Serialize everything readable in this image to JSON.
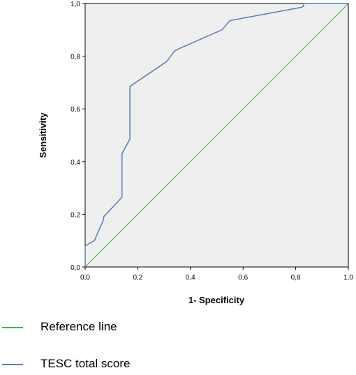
{
  "chart_data": {
    "type": "line",
    "title": "",
    "xlabel": "1- Specificity",
    "ylabel": "Sensitivity",
    "xlim": [
      0,
      1
    ],
    "ylim": [
      0,
      1
    ],
    "xticks": [
      "0,0",
      "0,2",
      "0,4",
      "0,6",
      "0,8",
      "1,0"
    ],
    "yticks": [
      "0,0",
      "0,2",
      "0,4",
      "0,6",
      "0,8",
      "1,0"
    ],
    "grid": false,
    "legend_position": "bottom-left",
    "plot_background": "#efefef",
    "series": [
      {
        "name": "Reference line",
        "color": "#3cb44b",
        "x": [
          0,
          1
        ],
        "y": [
          0,
          1
        ]
      },
      {
        "name": "TESC total score",
        "color": "#5b7bb5",
        "x": [
          0,
          0,
          0.035,
          0.035,
          0.07,
          0.07,
          0.14,
          0.14,
          0.17,
          0.17,
          0.17,
          0.31,
          0.34,
          0.36,
          0.52,
          0.55,
          0.82,
          0.83,
          0.83,
          0.9,
          1
        ],
        "y": [
          0,
          0.08,
          0.1,
          0.1,
          0.18,
          0.19,
          0.265,
          0.43,
          0.485,
          0.49,
          0.685,
          0.78,
          0.82,
          0.83,
          0.9,
          0.935,
          0.985,
          0.99,
          1,
          1,
          1
        ]
      }
    ]
  }
}
